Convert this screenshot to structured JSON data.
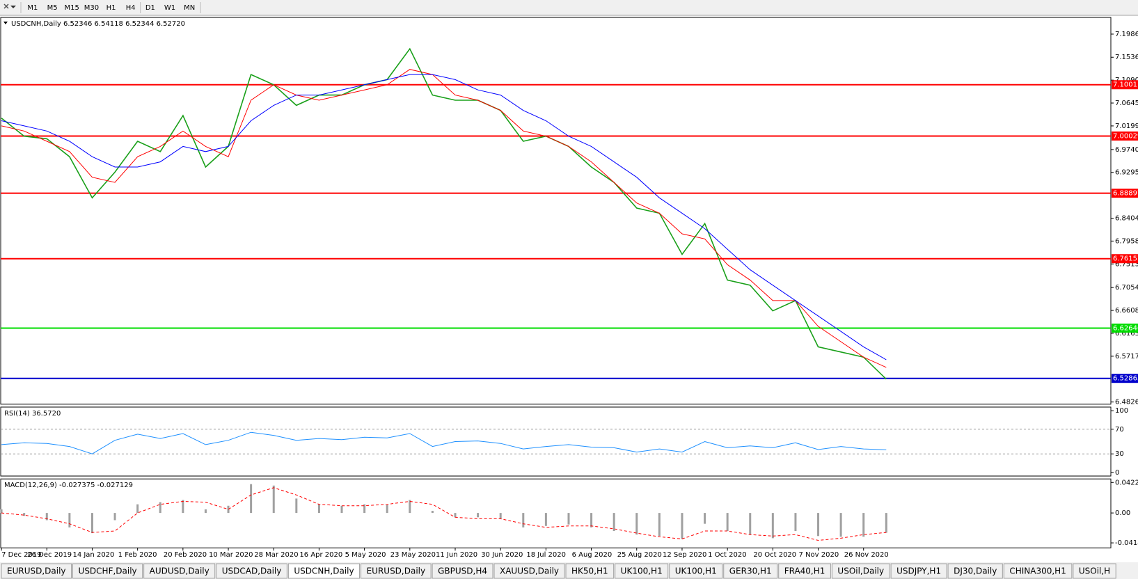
{
  "toolbar": {
    "timeframes": [
      "M1",
      "M5",
      "M15",
      "M30",
      "H1",
      "H4",
      "D1",
      "W1",
      "MN"
    ]
  },
  "tabs": [
    "EURUSD,Daily",
    "USDCHF,Daily",
    "AUDUSD,Daily",
    "USDCAD,Daily",
    "USDCNH,Daily",
    "EURUSD,Daily",
    "GBPUSD,H4",
    "XAUUSD,Daily",
    "HK50,H1",
    "UK100,H1",
    "UK100,H1",
    "GER30,H1",
    "FRA40,H1",
    "USOil,Daily",
    "USDJPY,H1",
    "DJ30,Daily",
    "CHINA300,H1",
    "USOil,H"
  ],
  "active_tab": 4,
  "chart_data": [
    {
      "type": "line",
      "title": "USDCNH,Daily  6.52346 6.54118 6.52344 6.52720",
      "series": [
        {
          "color": "#1aa01a",
          "values": [
            7.035,
            7.0,
            6.995,
            6.96,
            6.88,
            6.93,
            6.99,
            6.97,
            7.04,
            6.94,
            6.98,
            7.12,
            7.1,
            7.06,
            7.08,
            7.08,
            7.1,
            7.11,
            7.17,
            7.08,
            7.07,
            7.07,
            7.05,
            6.99,
            7.0,
            6.98,
            6.94,
            6.91,
            6.86,
            6.85,
            6.77,
            6.83,
            6.72,
            6.71,
            6.66,
            6.68,
            6.59,
            6.58,
            6.57,
            6.5272
          ]
        },
        {
          "color": "#ff0000",
          "values": [
            7.02,
            7.01,
            6.99,
            6.97,
            6.92,
            6.91,
            6.96,
            6.98,
            7.01,
            6.98,
            6.96,
            7.07,
            7.1,
            7.08,
            7.07,
            7.08,
            7.09,
            7.1,
            7.13,
            7.12,
            7.08,
            7.07,
            7.05,
            7.01,
            7.0,
            6.98,
            6.95,
            6.91,
            6.87,
            6.85,
            6.81,
            6.8,
            6.75,
            6.72,
            6.68,
            6.68,
            6.63,
            6.6,
            6.57,
            6.55
          ]
        },
        {
          "color": "#0000ff",
          "values": [
            7.03,
            7.02,
            7.01,
            6.99,
            6.96,
            6.94,
            6.94,
            6.95,
            6.98,
            6.97,
            6.98,
            7.03,
            7.06,
            7.08,
            7.08,
            7.09,
            7.1,
            7.11,
            7.12,
            7.12,
            7.11,
            7.09,
            7.08,
            7.05,
            7.03,
            7.0,
            6.98,
            6.95,
            6.92,
            6.88,
            6.85,
            6.82,
            6.78,
            6.74,
            6.71,
            6.68,
            6.65,
            6.62,
            6.59,
            6.565
          ]
        }
      ],
      "ylim": [
        6.4784,
        7.2311
      ],
      "yticks": [
        {
          "value": 7.19865,
          "label": "7.19865"
        },
        {
          "value": 7.1536,
          "label": "7.15360"
        },
        {
          "value": 7.10905,
          "label": "7.10905"
        },
        {
          "value": 7.0645,
          "label": "7.06450"
        },
        {
          "value": 7.01995,
          "label": "7.01995"
        },
        {
          "value": 6.974,
          "label": "6.97400"
        },
        {
          "value": 6.9295,
          "label": "6.92950"
        },
        {
          "value": 6.8404,
          "label": "6.84040"
        },
        {
          "value": 6.79585,
          "label": "6.79585"
        },
        {
          "value": 6.7513,
          "label": "6.75130"
        },
        {
          "value": 6.7054,
          "label": "6.70540"
        },
        {
          "value": 6.66085,
          "label": "6.66085"
        },
        {
          "value": 6.6163,
          "label": "6.61630"
        },
        {
          "value": 6.57175,
          "label": "6.57175"
        },
        {
          "value": 6.48265,
          "label": "6.48265"
        }
      ],
      "levels": [
        {
          "value": 7.10011,
          "color": "#ff0000"
        },
        {
          "value": 7.00029,
          "color": "#ff0000"
        },
        {
          "value": 6.88897,
          "color": "#ff0000"
        },
        {
          "value": 6.76157,
          "color": "#ff0000"
        },
        {
          "value": 6.62646,
          "color": "#00dd00"
        },
        {
          "value": 6.52865,
          "color": "#0000cc"
        }
      ]
    },
    {
      "type": "line",
      "title": "RSI(14) 36.5720",
      "series": [
        {
          "color": "#1e90ff",
          "values": [
            45,
            48,
            47,
            42,
            30,
            52,
            62,
            55,
            63,
            45,
            52,
            65,
            60,
            52,
            55,
            53,
            57,
            56,
            63,
            42,
            50,
            51,
            47,
            38,
            42,
            45,
            41,
            40,
            33,
            38,
            33,
            50,
            40,
            43,
            40,
            48,
            37,
            42,
            38,
            36.572
          ]
        }
      ],
      "ylim": [
        -5.9,
        105.9
      ],
      "yticks": [
        0,
        30,
        70,
        100
      ],
      "dashed_levels": [
        30,
        70
      ]
    },
    {
      "type": "macd",
      "title": "MACD(12,26,9) -0.027375 -0.027129",
      "categories": [
        "7 Dec 2019",
        null,
        "26 Dec 2019",
        null,
        "14 Jan 2020",
        null,
        "1 Feb 2020",
        null,
        "20 Feb 2020",
        null,
        "10 Mar 2020",
        null,
        "28 Mar 2020",
        null,
        "16 Apr 2020",
        null,
        "5 May 2020",
        null,
        "23 May 2020",
        null,
        "11 Jun 2020",
        null,
        "30 Jun 2020",
        null,
        "18 Jul 2020",
        null,
        "6 Aug 2020",
        null,
        "25 Aug 2020",
        null,
        "12 Sep 2020",
        null,
        "1 Oct 2020",
        null,
        "20 Oct 2020",
        null,
        "7 Nov 2020",
        null,
        "26 Nov 2020",
        null
      ],
      "series": [
        {
          "kind": "bar",
          "color": "#a0a0a0",
          "values": [
            0.005,
            -0.004,
            -0.01,
            -0.02,
            -0.028,
            -0.01,
            0.012,
            0.015,
            0.018,
            0.005,
            0.01,
            0.04,
            0.038,
            0.02,
            0.012,
            0.01,
            0.012,
            0.011,
            0.018,
            0.003,
            -0.006,
            -0.006,
            -0.008,
            -0.02,
            -0.018,
            -0.016,
            -0.02,
            -0.025,
            -0.03,
            -0.032,
            -0.036,
            -0.015,
            -0.025,
            -0.03,
            -0.035,
            -0.025,
            -0.032,
            -0.033,
            -0.033,
            -0.027375
          ]
        },
        {
          "kind": "line",
          "dash": true,
          "color": "#ff0000",
          "values": [
            0.0,
            -0.003,
            -0.008,
            -0.015,
            -0.027,
            -0.025,
            0.0,
            0.012,
            0.016,
            0.015,
            0.005,
            0.025,
            0.035,
            0.025,
            0.012,
            0.01,
            0.01,
            0.012,
            0.016,
            0.012,
            -0.006,
            -0.008,
            -0.008,
            -0.015,
            -0.02,
            -0.018,
            -0.018,
            -0.022,
            -0.028,
            -0.033,
            -0.036,
            -0.025,
            -0.025,
            -0.03,
            -0.032,
            -0.03,
            -0.038,
            -0.035,
            -0.03,
            -0.027129
          ]
        }
      ],
      "ylim": [
        -0.0484,
        0.0472
      ],
      "yticks": [
        {
          "value": 0.042275,
          "label": "0.042275"
        },
        {
          "value": 0,
          "label": "0.00"
        },
        {
          "value": -0.04148,
          "label": "-0.04148"
        }
      ]
    }
  ]
}
